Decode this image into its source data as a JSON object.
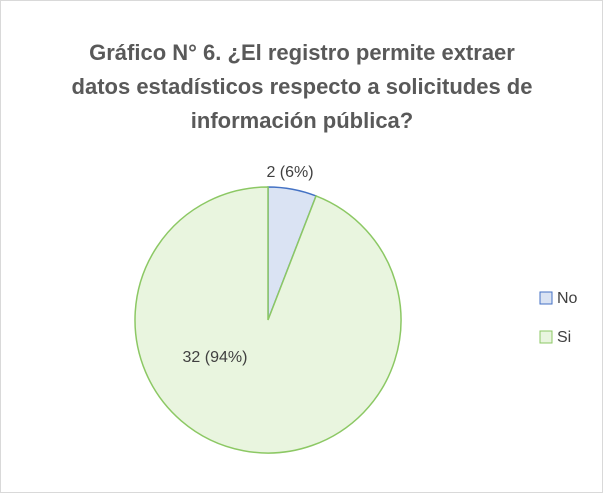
{
  "chart_data": {
    "type": "pie",
    "title": "Gráfico N° 6. ¿El registro permite extraer datos estadísticos respecto a solicitudes de información pública?",
    "categories": [
      "No",
      "Si"
    ],
    "values": [
      2,
      32
    ],
    "value_labels": [
      "2 (6%)",
      "32 (94%)"
    ],
    "colors": [
      "#dae3f3",
      "#e9f5df"
    ],
    "edge_colors": [
      "#4472c4",
      "#8cc864"
    ],
    "legend": "right"
  }
}
